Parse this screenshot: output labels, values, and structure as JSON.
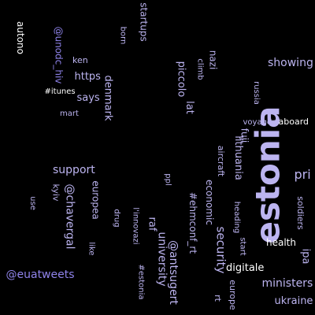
{
  "background": "#000000",
  "palette": {
    "light_lavender": "#bcb4f0",
    "lavender": "#8f83ea",
    "white": "#ffffff"
  },
  "words": [
    "estonia",
    "startups",
    "born",
    "autono",
    "@unodc_hiv",
    "ken",
    "https",
    "nazi",
    "climb",
    "piccolo",
    "showing",
    "russia",
    "#itunes",
    "says",
    "denmark",
    "lat",
    "mart",
    "voyager",
    "aboard",
    "aircraft",
    "lithuania",
    "fuji",
    "support",
    "pri",
    "ppl",
    "kyiv",
    "@chavergal",
    "europea",
    "use",
    "economic",
    "#ehmconf_rt",
    "drug",
    "l'innovazi",
    "raf",
    "heading",
    "soldiers",
    "security",
    "start",
    "health",
    "like",
    "university",
    "@antsugert",
    "ipa",
    "@euatweets",
    "#estonia",
    "digitale",
    "ministers",
    "rt",
    "europe",
    "ukraine"
  ]
}
